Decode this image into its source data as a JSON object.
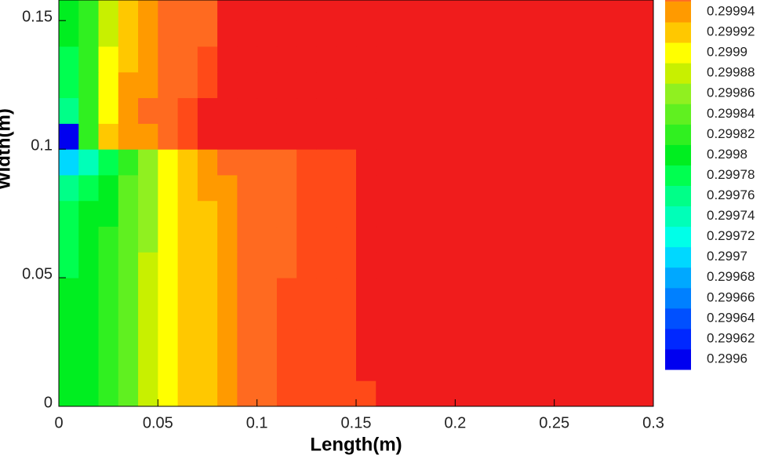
{
  "chart_data": {
    "type": "heatmap",
    "xlabel": "Length(m)",
    "ylabel": "Width(m)",
    "xlim": [
      0,
      0.3
    ],
    "ylim": [
      0,
      0.158
    ],
    "xticks": [
      0,
      0.05,
      0.1,
      0.15,
      0.2,
      0.25,
      0.3
    ],
    "yticks": [
      0,
      0.05,
      0.1,
      0.15
    ],
    "x_edges": [
      0,
      0.01,
      0.02,
      0.03,
      0.04,
      0.05,
      0.06,
      0.07,
      0.08,
      0.09,
      0.1,
      0.11,
      0.12,
      0.13,
      0.14,
      0.15,
      0.16,
      0.3
    ],
    "y_edges": [
      0,
      0.01,
      0.02,
      0.03,
      0.04,
      0.05,
      0.06,
      0.07,
      0.08,
      0.09,
      0.1,
      0.11,
      0.12,
      0.13,
      0.14,
      0.15,
      0.158
    ],
    "z": [
      [
        0.29981,
        0.29981,
        0.29983,
        0.29985,
        0.29989,
        0.29991,
        0.29993,
        0.29993,
        0.29995,
        0.29997,
        0.29997,
        0.29999,
        0.29999,
        0.29999,
        0.29999,
        0.29999,
        0.30001
      ],
      [
        0.29981,
        0.29981,
        0.29983,
        0.29985,
        0.29989,
        0.29991,
        0.29993,
        0.29993,
        0.29995,
        0.29997,
        0.29997,
        0.29999,
        0.29999,
        0.29999,
        0.29999,
        0.30001,
        0.30001
      ],
      [
        0.29981,
        0.29981,
        0.29983,
        0.29985,
        0.29989,
        0.29991,
        0.29993,
        0.29993,
        0.29995,
        0.29997,
        0.29997,
        0.29999,
        0.29999,
        0.29999,
        0.29999,
        0.30001,
        0.30001
      ],
      [
        0.29981,
        0.29981,
        0.29983,
        0.29985,
        0.29989,
        0.29991,
        0.29993,
        0.29993,
        0.29995,
        0.29997,
        0.29997,
        0.29999,
        0.29999,
        0.29999,
        0.29999,
        0.30001,
        0.30001
      ],
      [
        0.29981,
        0.29981,
        0.29983,
        0.29985,
        0.29989,
        0.29991,
        0.29993,
        0.29993,
        0.29995,
        0.29997,
        0.29997,
        0.29999,
        0.29999,
        0.29999,
        0.29999,
        0.30001,
        0.30001
      ],
      [
        0.29979,
        0.29981,
        0.29983,
        0.29985,
        0.29989,
        0.29991,
        0.29993,
        0.29993,
        0.29995,
        0.29997,
        0.29997,
        0.29997,
        0.29999,
        0.29999,
        0.29999,
        0.30001,
        0.30001
      ],
      [
        0.29979,
        0.29981,
        0.29983,
        0.29985,
        0.29987,
        0.29991,
        0.29993,
        0.29993,
        0.29995,
        0.29997,
        0.29997,
        0.29997,
        0.29999,
        0.29999,
        0.29999,
        0.30001,
        0.30001
      ],
      [
        0.29979,
        0.29981,
        0.29981,
        0.29985,
        0.29987,
        0.29991,
        0.29993,
        0.29993,
        0.29995,
        0.29997,
        0.29997,
        0.29997,
        0.29999,
        0.29999,
        0.29999,
        0.30001,
        0.30001
      ],
      [
        0.29977,
        0.29979,
        0.29981,
        0.29985,
        0.29987,
        0.29991,
        0.29993,
        0.29995,
        0.29995,
        0.29997,
        0.29997,
        0.29997,
        0.29999,
        0.29999,
        0.29999,
        0.30001,
        0.30001
      ],
      [
        0.29971,
        0.29975,
        0.29979,
        0.29983,
        0.29987,
        0.29991,
        0.29993,
        0.29995,
        0.29997,
        0.29997,
        0.29997,
        0.29997,
        0.29999,
        0.29999,
        0.29999,
        0.30001,
        0.30001
      ],
      [
        0.29961,
        0.29983,
        0.29993,
        0.29995,
        0.29995,
        0.29997,
        0.29999,
        0.30001,
        0.30001,
        0.30001,
        0.30001,
        0.30001,
        0.30001,
        0.30001,
        0.30001,
        0.30001,
        0.30001
      ],
      [
        0.29977,
        0.29983,
        0.29991,
        0.29995,
        0.29997,
        0.29997,
        0.29999,
        0.30001,
        0.30001,
        0.30001,
        0.30001,
        0.30001,
        0.30001,
        0.30001,
        0.30001,
        0.30001,
        0.30001
      ],
      [
        0.29979,
        0.29983,
        0.29991,
        0.29995,
        0.29995,
        0.29997,
        0.29997,
        0.29999,
        0.30001,
        0.30001,
        0.30001,
        0.30001,
        0.30001,
        0.30001,
        0.30001,
        0.30001,
        0.30001
      ],
      [
        0.29979,
        0.29983,
        0.29991,
        0.29993,
        0.29995,
        0.29997,
        0.29997,
        0.29999,
        0.30001,
        0.30001,
        0.30001,
        0.30001,
        0.30001,
        0.30001,
        0.30001,
        0.30001,
        0.30001
      ],
      [
        0.29981,
        0.29983,
        0.29989,
        0.29993,
        0.29995,
        0.29997,
        0.29997,
        0.29997,
        0.30001,
        0.30001,
        0.30001,
        0.30001,
        0.30001,
        0.30001,
        0.30001,
        0.30001,
        0.30001
      ],
      [
        0.29981,
        0.29983,
        0.29989,
        0.29993,
        0.29995,
        0.29997,
        0.29997,
        0.29997,
        0.30001,
        0.30001,
        0.30001,
        0.30001,
        0.30001,
        0.30001,
        0.30001,
        0.30001,
        0.30001
      ]
    ],
    "colorbar": {
      "levels": [
        0.2996,
        0.29962,
        0.29964,
        0.29966,
        0.29968,
        0.2997,
        0.29972,
        0.29974,
        0.29976,
        0.29978,
        0.2998,
        0.29982,
        0.29984,
        0.29986,
        0.29988,
        0.2999,
        0.29992,
        0.29994
      ],
      "colors": [
        "#0000f0",
        "#0028ff",
        "#0050ff",
        "#0080ff",
        "#00a8ff",
        "#00d8ff",
        "#00ffe8",
        "#00ffb8",
        "#00ff88",
        "#00ff50",
        "#00ee20",
        "#30f020",
        "#60f020",
        "#90f020",
        "#c8f000",
        "#ffff00",
        "#ffc800",
        "#ff9a00",
        "#ff6a20",
        "#ff4a18",
        "#f01c1c"
      ]
    }
  }
}
